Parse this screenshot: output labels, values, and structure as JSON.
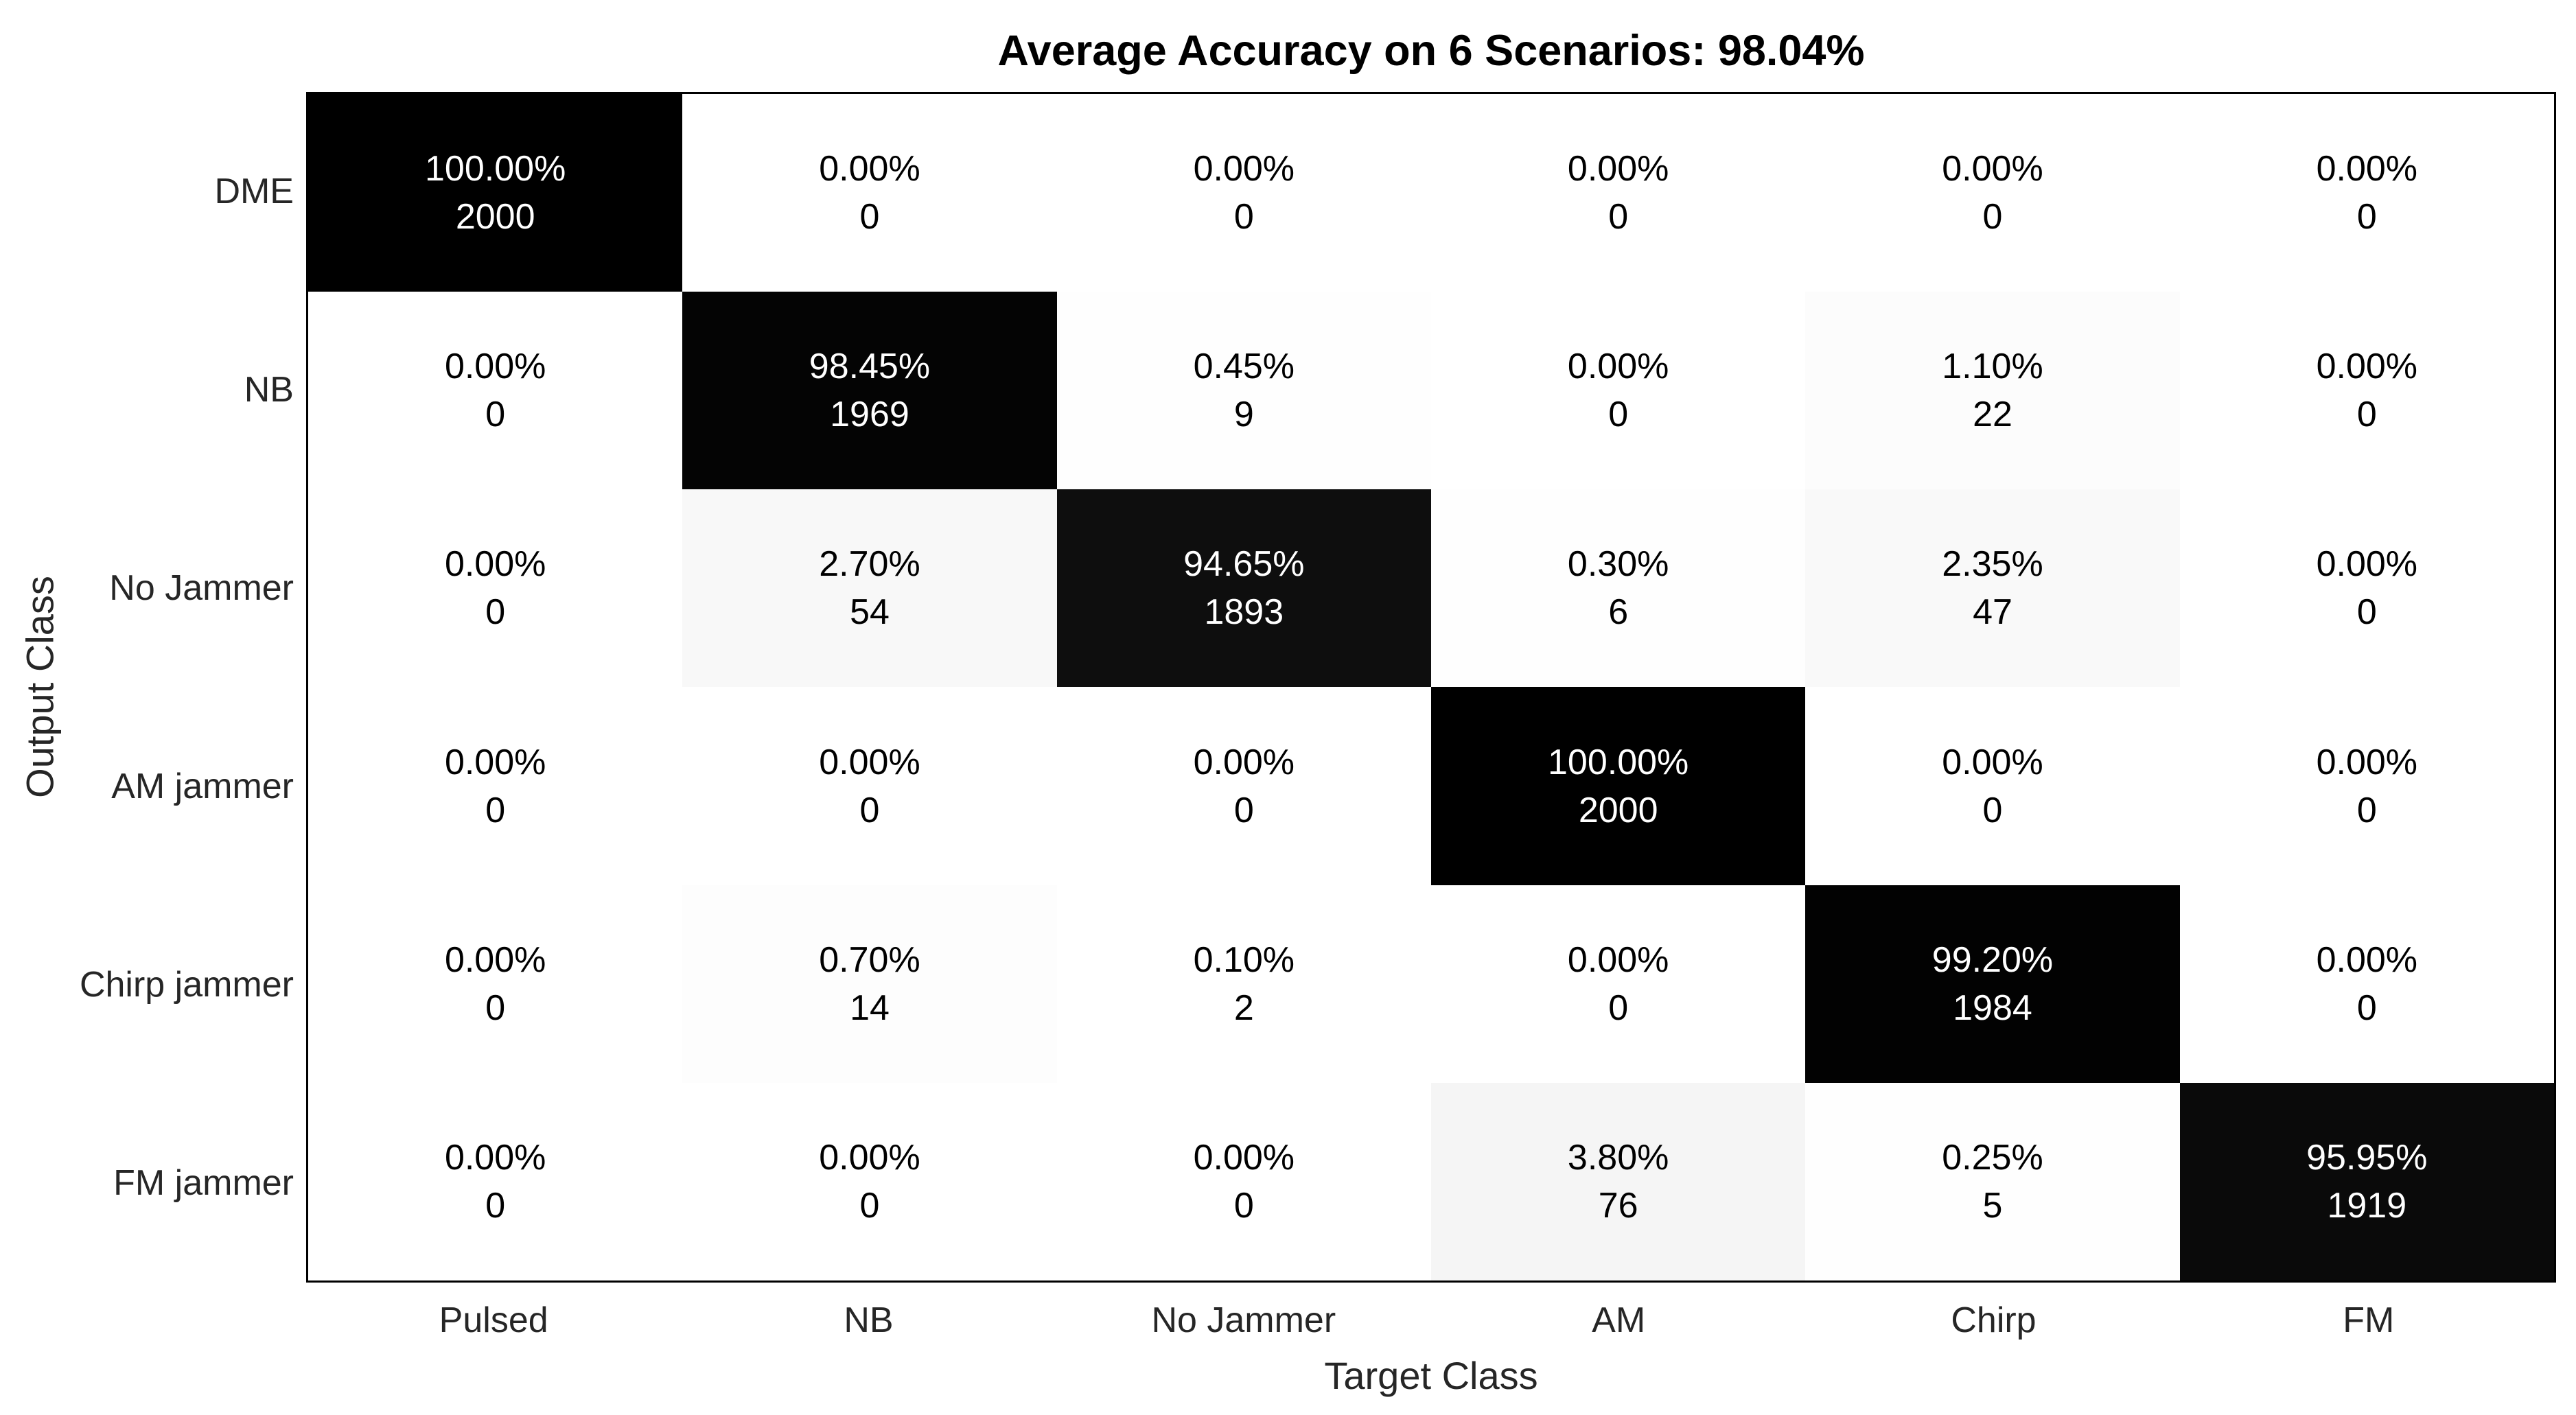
{
  "chart_data": {
    "type": "heatmap",
    "title": "Average Accuracy on 6 Scenarios: 98.04%",
    "xlabel": "Target Class",
    "ylabel": "Output Class",
    "x_categories": [
      "Pulsed",
      "NB",
      "No Jammer",
      "AM",
      "Chirp",
      "FM"
    ],
    "y_categories": [
      "DME",
      "NB",
      "No Jammer",
      "AM jammer",
      "Chirp jammer",
      "FM jammer"
    ],
    "cells": [
      [
        {
          "pct": "100.00%",
          "count": "2000"
        },
        {
          "pct": "0.00%",
          "count": "0"
        },
        {
          "pct": "0.00%",
          "count": "0"
        },
        {
          "pct": "0.00%",
          "count": "0"
        },
        {
          "pct": "0.00%",
          "count": "0"
        },
        {
          "pct": "0.00%",
          "count": "0"
        }
      ],
      [
        {
          "pct": "0.00%",
          "count": "0"
        },
        {
          "pct": "98.45%",
          "count": "1969"
        },
        {
          "pct": "0.45%",
          "count": "9"
        },
        {
          "pct": "0.00%",
          "count": "0"
        },
        {
          "pct": "1.10%",
          "count": "22"
        },
        {
          "pct": "0.00%",
          "count": "0"
        }
      ],
      [
        {
          "pct": "0.00%",
          "count": "0"
        },
        {
          "pct": "2.70%",
          "count": "54"
        },
        {
          "pct": "94.65%",
          "count": "1893"
        },
        {
          "pct": "0.30%",
          "count": "6"
        },
        {
          "pct": "2.35%",
          "count": "47"
        },
        {
          "pct": "0.00%",
          "count": "0"
        }
      ],
      [
        {
          "pct": "0.00%",
          "count": "0"
        },
        {
          "pct": "0.00%",
          "count": "0"
        },
        {
          "pct": "0.00%",
          "count": "0"
        },
        {
          "pct": "100.00%",
          "count": "2000"
        },
        {
          "pct": "0.00%",
          "count": "0"
        },
        {
          "pct": "0.00%",
          "count": "0"
        }
      ],
      [
        {
          "pct": "0.00%",
          "count": "0"
        },
        {
          "pct": "0.70%",
          "count": "14"
        },
        {
          "pct": "0.10%",
          "count": "2"
        },
        {
          "pct": "0.00%",
          "count": "0"
        },
        {
          "pct": "99.20%",
          "count": "1984"
        },
        {
          "pct": "0.00%",
          "count": "0"
        }
      ],
      [
        {
          "pct": "0.00%",
          "count": "0"
        },
        {
          "pct": "0.00%",
          "count": "0"
        },
        {
          "pct": "0.00%",
          "count": "0"
        },
        {
          "pct": "3.80%",
          "count": "76"
        },
        {
          "pct": "0.25%",
          "count": "5"
        },
        {
          "pct": "95.95%",
          "count": "1919"
        }
      ]
    ],
    "colors": {
      "high": "#000000",
      "low": "#ffffff",
      "dark_cell_text": "#ffffff",
      "light_cell_text": "#000000",
      "label_color": "#262626",
      "title_color": "#000000",
      "axes_border": "#000000"
    },
    "layout": {
      "grid": "off",
      "legend": "none",
      "value_min": 0,
      "value_max": 100
    }
  }
}
